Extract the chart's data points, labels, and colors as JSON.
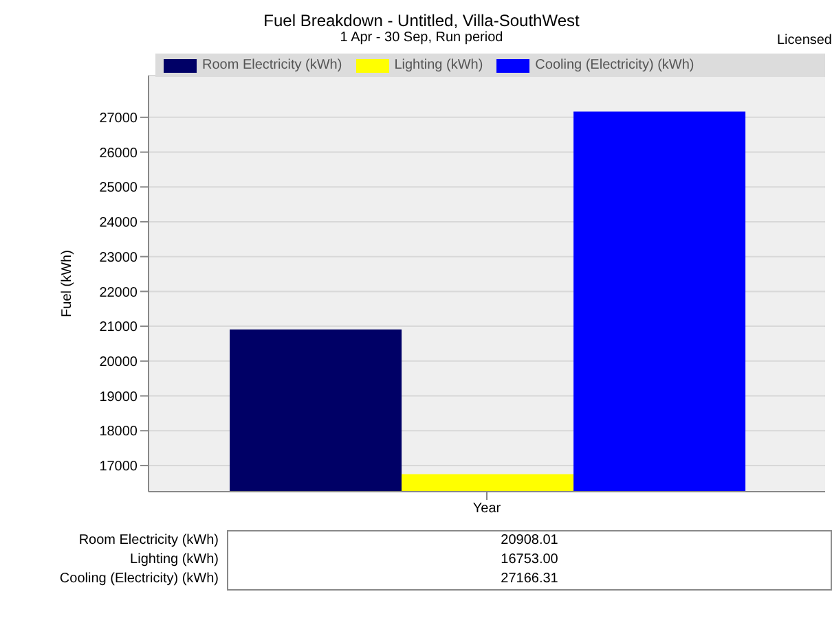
{
  "chart_data": {
    "type": "bar",
    "title": "Fuel Breakdown - Untitled, Villa-SouthWest",
    "subtitle": "1 Apr - 30 Sep, Run period",
    "annotations": [
      "Licensed",
      "20908.01",
      "16753.00",
      "27166.31"
    ],
    "ylabel": "Fuel (kWh)",
    "categories": [
      "Year"
    ],
    "series": [
      {
        "name": "Room Electricity (kWh)",
        "color": "#000066",
        "values": [
          20908.01
        ]
      },
      {
        "name": "Lighting (kWh)",
        "color": "#ffff00",
        "values": [
          16753.0
        ]
      },
      {
        "name": "Cooling (Electricity) (kWh)",
        "color": "#0000ff",
        "values": [
          27166.31
        ]
      }
    ],
    "ylim": [
      16250,
      28200
    ],
    "yticks": [
      17000,
      18000,
      19000,
      20000,
      21000,
      22000,
      23000,
      24000,
      25000,
      26000,
      27000
    ],
    "grid": "y",
    "legend": "top"
  }
}
